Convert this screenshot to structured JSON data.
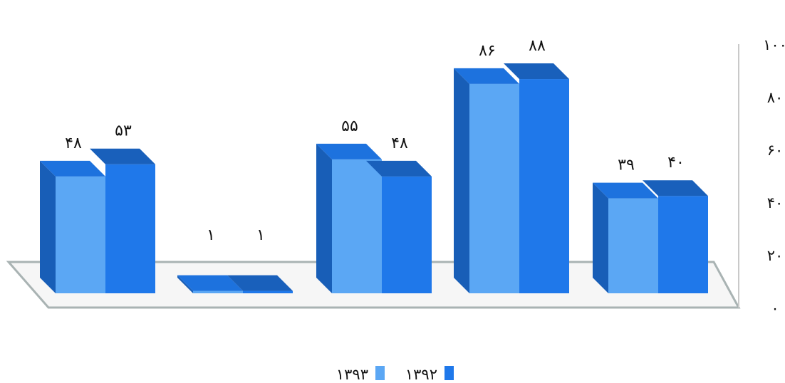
{
  "chart_data": {
    "type": "bar",
    "title": "",
    "xlabel": "",
    "ylabel": "",
    "ylim": [
      0,
      100
    ],
    "y_ticks": [
      "۰",
      "۲۰",
      "۴۰",
      "۶۰",
      "۸۰",
      "۱۰۰"
    ],
    "grid": false,
    "legend_position": "bottom-center",
    "categories": [
      "",
      "",
      "",
      "",
      ""
    ],
    "series": [
      {
        "name": "۱۳۹۳",
        "color": "#5ba7f4",
        "values": [
          48,
          1,
          55,
          86,
          39
        ],
        "labels": [
          "۴۸",
          "۱",
          "۵۵",
          "۸۶",
          "۳۹"
        ]
      },
      {
        "name": "۱۳۹۲",
        "color": "#1f78ea",
        "values": [
          53,
          1,
          48,
          88,
          40
        ],
        "labels": [
          "۵۳",
          "۱",
          "۴۸",
          "۸۸",
          "۴۰"
        ]
      }
    ]
  }
}
